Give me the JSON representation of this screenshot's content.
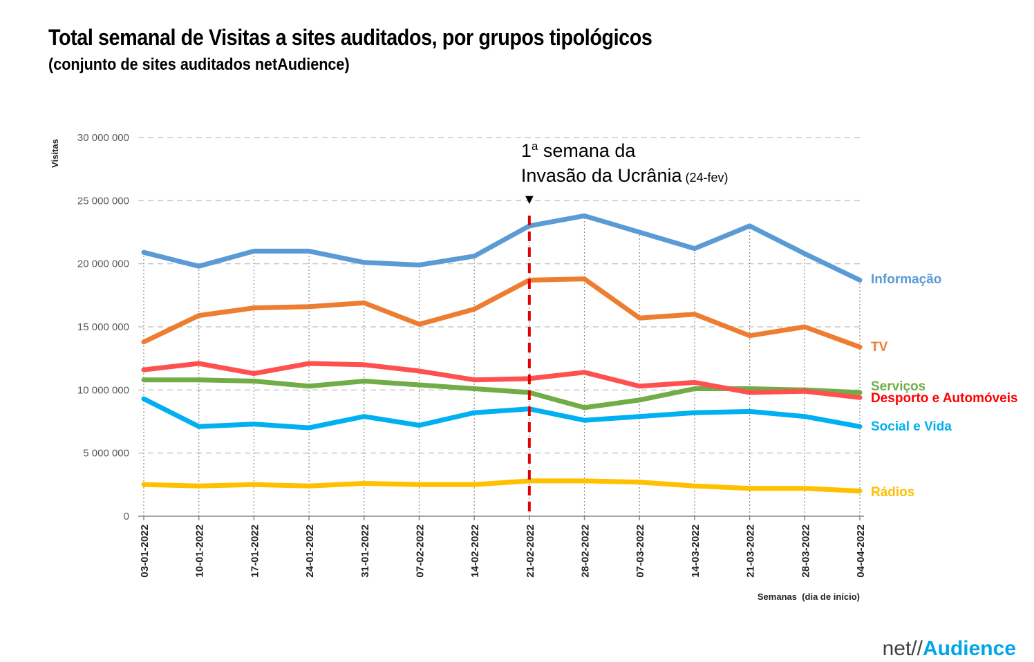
{
  "chart_data": {
    "type": "line",
    "title": "Total semanal de Visitas a sites auditados, por grupos tipológicos",
    "subtitle": "(conjunto de sites auditados netAudience)",
    "ylabel": "Visitas",
    "xlabel": "Semanas  (dia de início)",
    "ylim": [
      0,
      30000000
    ],
    "ytick_labels": [
      "0",
      "5 000 000",
      "10 000 000",
      "15 000 000",
      "20 000 000",
      "25 000 000",
      "30 000 000"
    ],
    "ytick_values": [
      0,
      5000000,
      10000000,
      15000000,
      20000000,
      25000000,
      30000000
    ],
    "categories": [
      "03-01-2022",
      "10-01-2022",
      "17-01-2022",
      "24-01-2022",
      "31-01-2022",
      "07-02-2022",
      "14-02-2022",
      "21-02-2022",
      "28-02-2022",
      "07-03-2022",
      "14-03-2022",
      "21-03-2022",
      "28-03-2022",
      "04-04-2022"
    ],
    "series": [
      {
        "name": "Informação",
        "color": "#5b9bd5",
        "values": [
          20900000,
          19800000,
          21000000,
          21000000,
          20100000,
          19900000,
          20600000,
          23000000,
          23800000,
          22500000,
          21200000,
          23000000,
          20800000,
          18700000
        ]
      },
      {
        "name": "TV",
        "color": "#ed7d31",
        "values": [
          13800000,
          15900000,
          16500000,
          16600000,
          16900000,
          15200000,
          16400000,
          18700000,
          18800000,
          15700000,
          16000000,
          14300000,
          15000000,
          13400000
        ]
      },
      {
        "name": "Serviços",
        "color": "#70ad47",
        "values": [
          10800000,
          10800000,
          10700000,
          10300000,
          10700000,
          10400000,
          10100000,
          9800000,
          8600000,
          9200000,
          10100000,
          10100000,
          10000000,
          9800000
        ]
      },
      {
        "name": "Desporto e Automóveis",
        "color": "#ff5050",
        "values": [
          11600000,
          12100000,
          11300000,
          12100000,
          12000000,
          11500000,
          10800000,
          10900000,
          11400000,
          10300000,
          10600000,
          9800000,
          9900000,
          9400000
        ]
      },
      {
        "name": "Social e Vida",
        "color": "#00b0f0",
        "values": [
          9300000,
          7100000,
          7300000,
          7000000,
          7900000,
          7200000,
          8200000,
          8500000,
          7600000,
          7900000,
          8200000,
          8300000,
          7900000,
          7100000
        ]
      },
      {
        "name": "Rádios",
        "color": "#ffc000",
        "values": [
          2500000,
          2400000,
          2500000,
          2400000,
          2600000,
          2500000,
          2500000,
          2800000,
          2800000,
          2700000,
          2400000,
          2200000,
          2200000,
          2000000
        ]
      }
    ],
    "annotation": {
      "category": "21-02-2022",
      "sup_number": "1",
      "sup": "a",
      "line1_rest": " semana da",
      "line2": "Invasão da Ucrânia",
      "line2_small": " (24-fev)",
      "marker": "▼",
      "color": "#e00000"
    }
  },
  "logo": {
    "net": "net//",
    "audience": "Audience"
  }
}
